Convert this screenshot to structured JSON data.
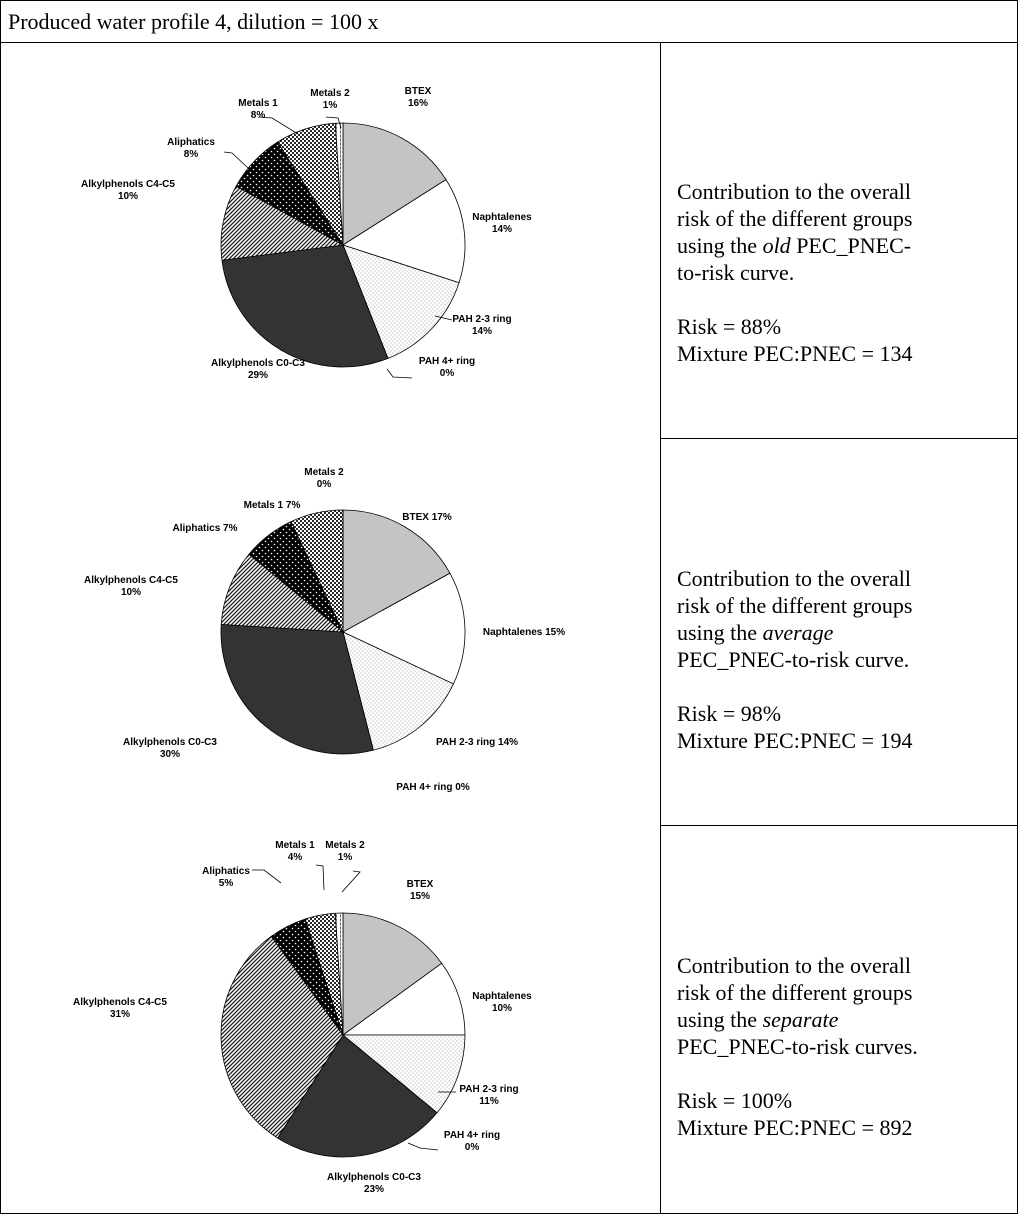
{
  "header": "Produced water profile 4, dilution = 100 x",
  "rows": [
    {
      "desc_lines": [
        {
          "pre": "Contribution to the overall",
          "em": "",
          "post": ""
        },
        {
          "pre": "risk of the different groups",
          "em": "",
          "post": ""
        },
        {
          "pre": "using the ",
          "em": "old",
          "post": " PEC_PNEC-"
        },
        {
          "pre": "to-risk curve.",
          "em": "",
          "post": ""
        }
      ],
      "risk": "Risk = 88%",
      "mixture": "Mixture PEC:PNEC = 134"
    },
    {
      "desc_lines": [
        {
          "pre": "Contribution to the overall",
          "em": "",
          "post": ""
        },
        {
          "pre": "risk of the different groups",
          "em": "",
          "post": ""
        },
        {
          "pre": "using the ",
          "em": "average",
          "post": ""
        },
        {
          "pre": "PEC_PNEC-to-risk curve.",
          "em": "",
          "post": ""
        }
      ],
      "risk": "Risk = 98%",
      "mixture": "Mixture PEC:PNEC = 194"
    },
    {
      "desc_lines": [
        {
          "pre": "Contribution to the overall",
          "em": "",
          "post": ""
        },
        {
          "pre": "risk of the different groups",
          "em": "",
          "post": ""
        },
        {
          "pre": "using the ",
          "em": "separate",
          "post": ""
        },
        {
          "pre": "PEC_PNEC-to-risk curves.",
          "em": "",
          "post": ""
        }
      ],
      "risk": "Risk = 100%",
      "mixture": "Mixture PEC:PNEC = 892"
    }
  ],
  "chart_data": [
    {
      "type": "pie",
      "title": "",
      "categories": [
        "BTEX",
        "Naphtalenes",
        "PAH 2-3 ring",
        "PAH 4+ ring",
        "Alkylphenols C0-C3",
        "Alkylphenols C4-C5",
        "Aliphatics",
        "Metals 1",
        "Metals 2"
      ],
      "values": [
        16,
        14,
        14,
        0,
        29,
        10,
        8,
        8,
        1
      ],
      "labels": [
        [
          "BTEX",
          "16%"
        ],
        [
          "Naphtalenes",
          "14%"
        ],
        [
          "PAH 2-3 ring",
          "14%"
        ],
        [
          "PAH 4+ ring",
          "0%"
        ],
        [
          "Alkylphenols C0-C3",
          "29%"
        ],
        [
          "Alkylphenols C4-C5",
          "10%"
        ],
        [
          "Aliphatics",
          "8%"
        ],
        [
          "Metals 1",
          "8%"
        ],
        [
          "Metals 2",
          "1%"
        ]
      ]
    },
    {
      "type": "pie",
      "title": "",
      "categories": [
        "BTEX",
        "Naphtalenes",
        "PAH 2-3 ring",
        "PAH 4+ ring",
        "Alkylphenols C0-C3",
        "Alkylphenols C4-C5",
        "Aliphatics",
        "Metals 1",
        "Metals 2"
      ],
      "values": [
        17,
        15,
        14,
        0,
        30,
        10,
        7,
        7,
        0
      ],
      "labels": [
        [
          "BTEX 17%"
        ],
        [
          "Naphtalenes 15%"
        ],
        [
          "PAH 2-3 ring 14%"
        ],
        [
          "PAH 4+ ring  0%"
        ],
        [
          "Alkylphenols C0-C3",
          "30%"
        ],
        [
          "Alkylphenols C4-C5",
          "10%"
        ],
        [
          "Aliphatics 7%"
        ],
        [
          "Metals 1 7%"
        ],
        [
          "Metals 2",
          "0%"
        ]
      ]
    },
    {
      "type": "pie",
      "title": "",
      "categories": [
        "BTEX",
        "Naphtalenes",
        "PAH 2-3 ring",
        "PAH 4+ ring",
        "Alkylphenols C0-C3",
        "Alkylphenols C4-C5",
        "Aliphatics",
        "Metals 1",
        "Metals 2"
      ],
      "values": [
        15,
        10,
        11,
        0,
        23,
        31,
        5,
        4,
        1
      ],
      "labels": [
        [
          "BTEX",
          "15%"
        ],
        [
          "Naphtalenes",
          "10%"
        ],
        [
          "PAH 2-3 ring",
          "11%"
        ],
        [
          "PAH 4+ ring",
          "0%"
        ],
        [
          "Alkylphenols C0-C3",
          "23%"
        ],
        [
          "Alkylphenols C4-C5",
          "31%"
        ],
        [
          "Aliphatics",
          "5%"
        ],
        [
          "Metals 1",
          "4%"
        ],
        [
          "Metals 2",
          "1%"
        ]
      ]
    }
  ],
  "slice_styles": [
    "btex-gray",
    "naph-white",
    "pah23-dots",
    "pah4-white",
    "c0c3-dark",
    "c4c5-hatch",
    "aliph-black-dots",
    "metals1-check",
    "metals2-dash"
  ]
}
